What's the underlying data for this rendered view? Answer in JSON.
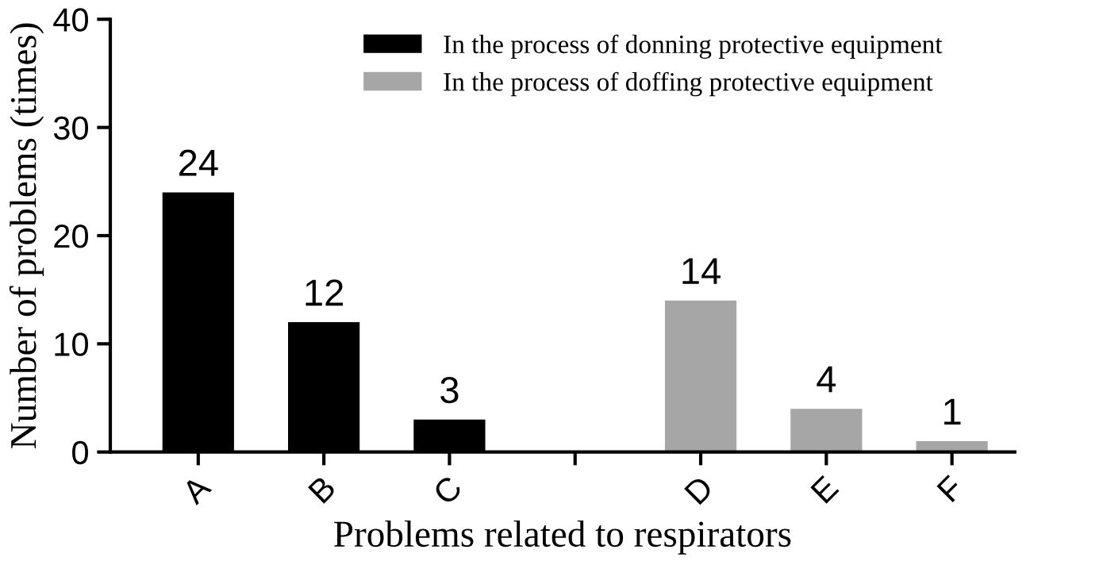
{
  "chart_data": {
    "type": "bar",
    "xlabel": "Problems related to respirators",
    "ylabel": "Number of problems (times)",
    "categories": [
      "A",
      "B",
      "C",
      null,
      "D",
      "E",
      "F"
    ],
    "series": [
      {
        "name": "In the process of donning protective equipment",
        "color": "#000000",
        "values": [
          24,
          12,
          3,
          null,
          null,
          null,
          null
        ]
      },
      {
        "name": "In the process of doffing protective equipment",
        "color": "#a6a6a6",
        "values": [
          null,
          null,
          null,
          null,
          14,
          4,
          1
        ]
      }
    ],
    "ylim": [
      0,
      40
    ],
    "yticks": [
      0,
      10,
      20,
      30,
      40
    ],
    "data_labels": true,
    "legend": "top",
    "grid": false
  }
}
